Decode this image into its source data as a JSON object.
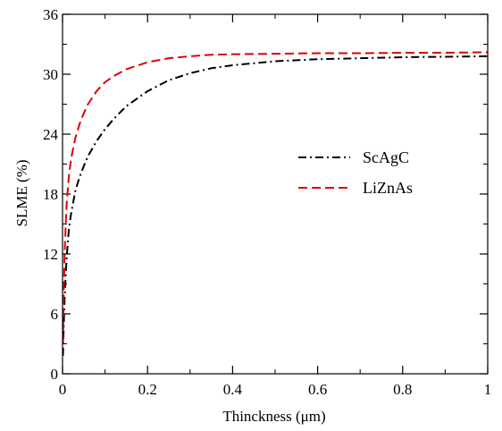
{
  "chart_data": {
    "type": "line",
    "xlabel": "Thinckness (μm)",
    "ylabel": "SLME (%)",
    "xlim": [
      0,
      1
    ],
    "ylim": [
      0,
      36
    ],
    "xticks": [
      0,
      0.2,
      0.4,
      0.6,
      0.8,
      1
    ],
    "xtick_labels": [
      "0",
      "0.2",
      "0.4",
      "0.6",
      "0.8",
      "1"
    ],
    "yticks": [
      0,
      6,
      12,
      18,
      24,
      30,
      36
    ],
    "ytick_labels": [
      "0",
      "6",
      "12",
      "18",
      "24",
      "30",
      "36"
    ],
    "grid": false,
    "legend_position": "center-right",
    "series": [
      {
        "name": "ScAgC",
        "color": "#000000",
        "style": "dash-dot",
        "x": [
          0.001,
          0.003,
          0.005,
          0.008,
          0.01,
          0.015,
          0.02,
          0.03,
          0.04,
          0.05,
          0.06,
          0.08,
          0.1,
          0.12,
          0.15,
          0.2,
          0.25,
          0.3,
          0.35,
          0.4,
          0.5,
          0.6,
          0.7,
          0.8,
          0.9,
          1.0
        ],
        "y": [
          1.8,
          5.0,
          7.6,
          10.3,
          11.8,
          14.5,
          16.0,
          18.3,
          19.7,
          20.8,
          21.8,
          23.3,
          24.5,
          25.5,
          26.8,
          28.3,
          29.4,
          30.1,
          30.6,
          30.9,
          31.3,
          31.5,
          31.6,
          31.7,
          31.75,
          31.8
        ]
      },
      {
        "name": "LiZnAs",
        "color": "#e00000",
        "style": "dashed",
        "x": [
          0.001,
          0.003,
          0.005,
          0.008,
          0.01,
          0.015,
          0.02,
          0.03,
          0.04,
          0.05,
          0.06,
          0.08,
          0.1,
          0.12,
          0.15,
          0.2,
          0.25,
          0.3,
          0.35,
          0.4,
          0.5,
          0.6,
          0.7,
          0.8,
          0.9,
          1.0
        ],
        "y": [
          3.0,
          8.5,
          12.0,
          15.5,
          17.2,
          19.8,
          21.5,
          23.6,
          25.0,
          26.1,
          27.0,
          28.3,
          29.2,
          29.8,
          30.5,
          31.2,
          31.6,
          31.8,
          31.95,
          32.0,
          32.05,
          32.1,
          32.1,
          32.15,
          32.15,
          32.2
        ]
      }
    ]
  }
}
